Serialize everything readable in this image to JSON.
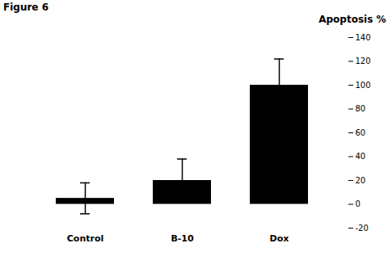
{
  "chart_data": {
    "type": "bar",
    "title": "Figure 6",
    "ylabel": "Apoptosis %",
    "categories": [
      "Control",
      "B-10",
      "Dox"
    ],
    "values": [
      5,
      20,
      100
    ],
    "errors": [
      13,
      18,
      22
    ],
    "color": "#000000",
    "ylim": [
      -20,
      140
    ],
    "yticks": [
      -20,
      0,
      20,
      40,
      60,
      80,
      100,
      120,
      140
    ],
    "grid": false
  }
}
